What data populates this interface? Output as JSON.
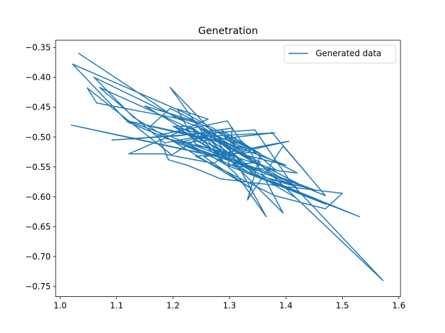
{
  "chart_data": {
    "type": "line",
    "title": "Genetration",
    "xlabel": "",
    "ylabel": "",
    "xlim": [
      0.992,
      1.603
    ],
    "ylim": [
      -0.767,
      -0.338
    ],
    "xticks": [
      1.0,
      1.1,
      1.2,
      1.3,
      1.4,
      1.5,
      1.6
    ],
    "xtick_labels": [
      "1.0",
      "1.1",
      "1.2",
      "1.3",
      "1.4",
      "1.5",
      "1.6"
    ],
    "yticks": [
      -0.35,
      -0.4,
      -0.45,
      -0.5,
      -0.55,
      -0.6,
      -0.65,
      -0.7,
      -0.75
    ],
    "ytick_labels": [
      "−0.35",
      "−0.40",
      "−0.45",
      "−0.50",
      "−0.55",
      "−0.60",
      "−0.65",
      "−0.70",
      "−0.75"
    ],
    "grid": false,
    "legend": {
      "position": "top-right",
      "entries": [
        "Generated data"
      ]
    },
    "series": [
      {
        "name": "Generated data",
        "color": "#1f77b4",
        "x": [
          1.033,
          1.145,
          1.205,
          1.262,
          1.318,
          1.285,
          1.355,
          1.332,
          1.395,
          1.438,
          1.375,
          1.47,
          1.405,
          1.572,
          1.36,
          1.418,
          1.3,
          1.382,
          1.53,
          1.29,
          1.47,
          1.12,
          1.022,
          1.215,
          1.35,
          1.24,
          1.38,
          1.47,
          1.5,
          1.285,
          1.225,
          1.192,
          1.173,
          1.296,
          1.32,
          1.382,
          1.24,
          1.208,
          1.262,
          1.122,
          1.182,
          1.272,
          1.312,
          1.24,
          1.202,
          1.06,
          1.13,
          1.34,
          1.255,
          1.405,
          1.282,
          1.232,
          1.305,
          1.365,
          1.312,
          1.252,
          1.272,
          1.31,
          1.42,
          1.195,
          1.16,
          1.33,
          1.25,
          1.412,
          1.345,
          1.092,
          1.21,
          1.305,
          1.298,
          1.355,
          1.278,
          1.43,
          1.208,
          1.265,
          1.332,
          1.395,
          1.258,
          1.185,
          1.07,
          1.185,
          1.282,
          1.352,
          1.275,
          1.345,
          1.15,
          1.248,
          1.065,
          1.048,
          1.198,
          1.268,
          1.325,
          1.215,
          1.38,
          1.232,
          1.345,
          1.195,
          1.292,
          1.225,
          1.185,
          1.3,
          1.23,
          1.2,
          1.3,
          1.145,
          1.02,
          1.312,
          1.418,
          1.365,
          1.45,
          1.12,
          1.275,
          1.332,
          1.4,
          1.258,
          1.202,
          1.318
        ],
        "y": [
          -0.36,
          -0.43,
          -0.468,
          -0.49,
          -0.522,
          -0.488,
          -0.528,
          -0.605,
          -0.515,
          -0.562,
          -0.492,
          -0.598,
          -0.573,
          -0.74,
          -0.55,
          -0.602,
          -0.535,
          -0.576,
          -0.633,
          -0.545,
          -0.612,
          -0.475,
          -0.378,
          -0.457,
          -0.525,
          -0.532,
          -0.598,
          -0.62,
          -0.594,
          -0.57,
          -0.547,
          -0.538,
          -0.497,
          -0.473,
          -0.506,
          -0.555,
          -0.512,
          -0.453,
          -0.47,
          -0.528,
          -0.528,
          -0.544,
          -0.52,
          -0.476,
          -0.465,
          -0.4,
          -0.467,
          -0.587,
          -0.533,
          -0.507,
          -0.533,
          -0.485,
          -0.53,
          -0.633,
          -0.562,
          -0.51,
          -0.498,
          -0.548,
          -0.56,
          -0.452,
          -0.482,
          -0.519,
          -0.487,
          -0.58,
          -0.488,
          -0.505,
          -0.498,
          -0.485,
          -0.547,
          -0.542,
          -0.508,
          -0.582,
          -0.51,
          -0.496,
          -0.515,
          -0.627,
          -0.498,
          -0.466,
          -0.417,
          -0.51,
          -0.492,
          -0.548,
          -0.503,
          -0.557,
          -0.448,
          -0.476,
          -0.443,
          -0.418,
          -0.53,
          -0.488,
          -0.548,
          -0.51,
          -0.493,
          -0.5,
          -0.565,
          -0.417,
          -0.545,
          -0.51,
          -0.502,
          -0.527,
          -0.482,
          -0.482,
          -0.537,
          -0.505,
          -0.48,
          -0.54,
          -0.583,
          -0.568,
          -0.588,
          -0.473,
          -0.505,
          -0.531,
          -0.547,
          -0.497,
          -0.483,
          -0.536
        ]
      }
    ]
  }
}
